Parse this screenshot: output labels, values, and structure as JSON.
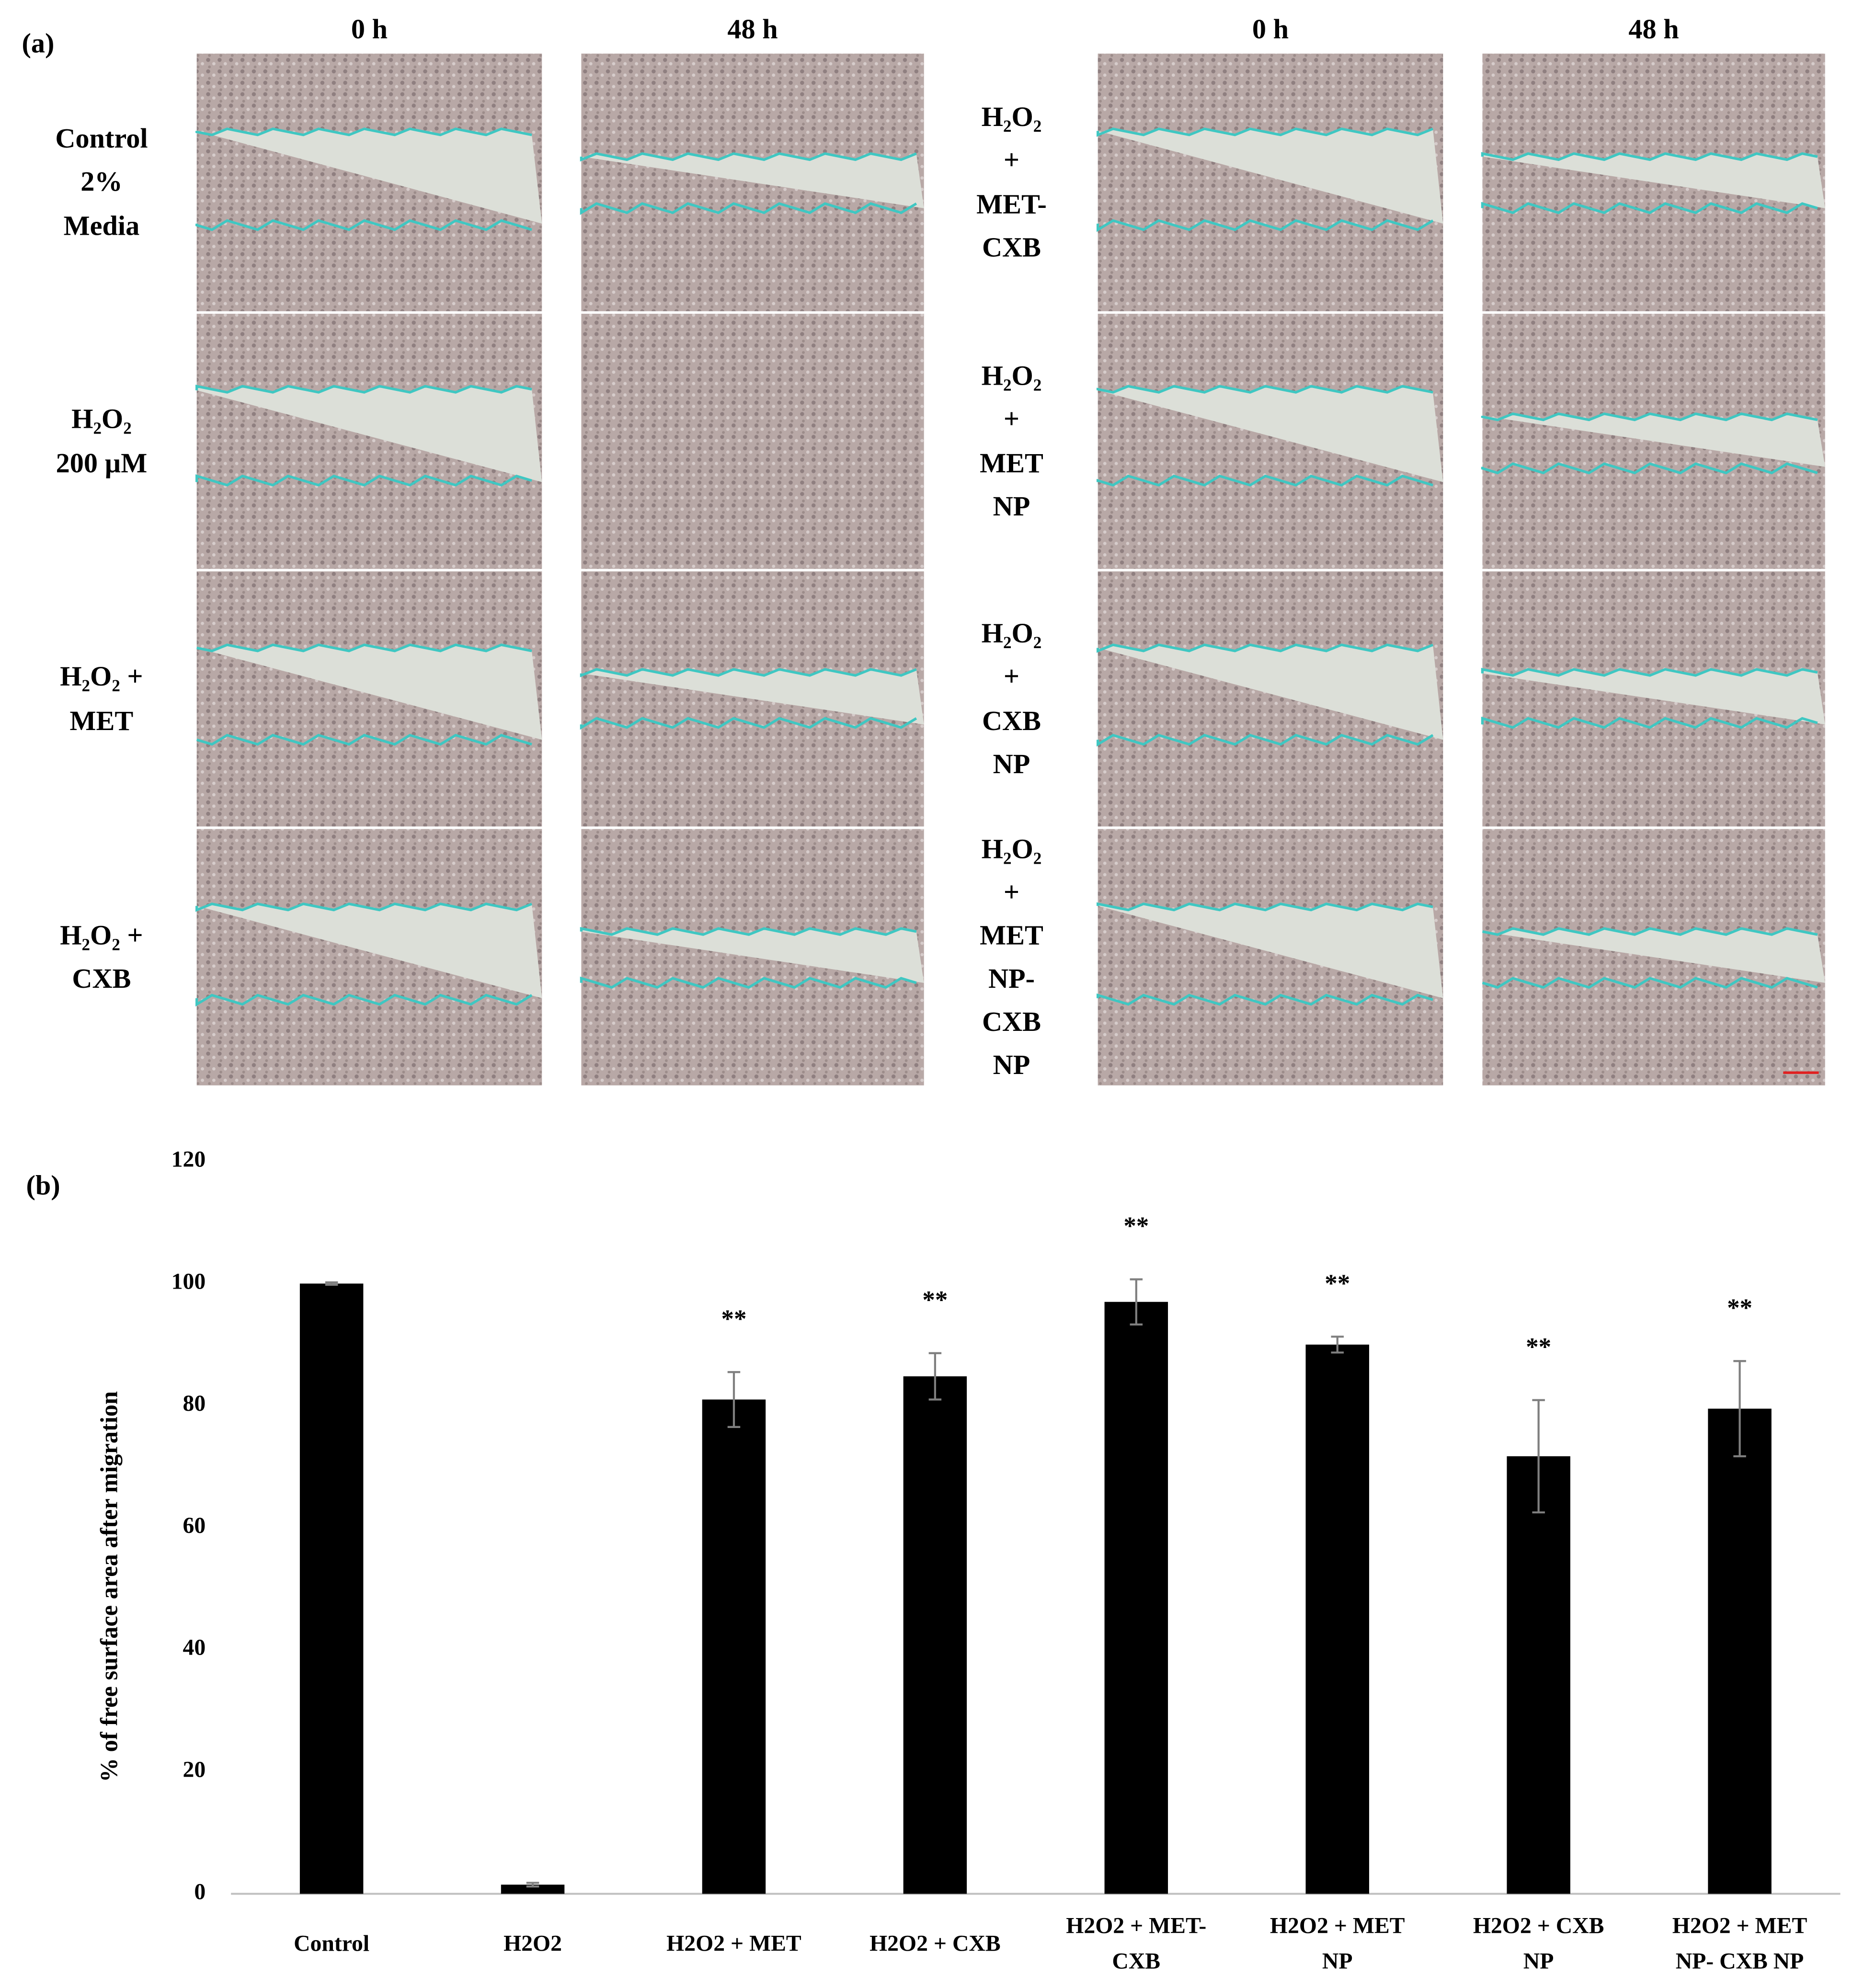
{
  "panel_a": {
    "label": "(a)",
    "time_headers": [
      "0 h",
      "48 h",
      "0 h",
      "48 h"
    ],
    "left_rows": [
      "Control\n2%\nMedia",
      "H₂O₂\n200 µM",
      "H₂O₂ +\nMET",
      "H₂O₂ +\nCXB"
    ],
    "right_rows": [
      "H₂O₂\n+\nMET-\nCXB",
      "H₂O₂\n+\nMET\nNP",
      "H₂O₂\n+\nCXB\nNP",
      "H₂O₂\n+\nMET\nNP-\nCXB\nNP"
    ]
  },
  "chart_data": {
    "type": "bar",
    "panel_label": "(b)",
    "y_label": "% of free surface area after migration",
    "categories": [
      "Control",
      "H2O2",
      "H2O2 + MET",
      "H2O2 + CXB",
      "H2O2 + MET-\nCXB",
      "H2O2  + MET\nNP",
      "H2O2 + CXB\nNP",
      "H2O2 + MET\nNP- CXB NP"
    ],
    "values": [
      100,
      1.5,
      81,
      84.8,
      97,
      90,
      71.7,
      79.5
    ],
    "errors": [
      0.2,
      0.3,
      4.5,
      3.8,
      3.7,
      1.3,
      9.2,
      7.8
    ],
    "significance": [
      null,
      null,
      "**",
      "**",
      "**",
      "**",
      "**",
      "**"
    ],
    "color": "#000000",
    "error_color": "#7f7f7f",
    "ylim": [
      0,
      120
    ],
    "yticks": [
      0,
      20,
      40,
      60,
      80,
      100,
      120
    ],
    "grid": false
  }
}
